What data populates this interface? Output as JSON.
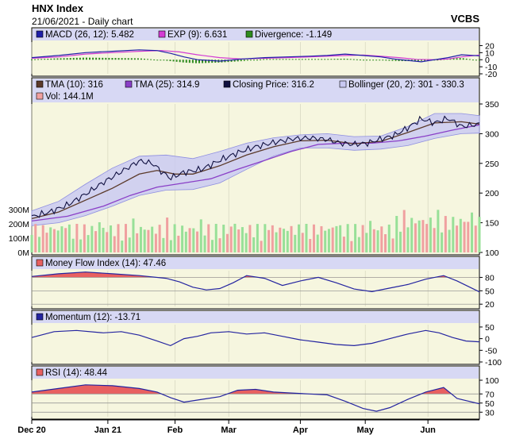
{
  "header": {
    "title": "HNX Index",
    "subtitle": "21/06/2021 - Daily chart",
    "brand": "VCBS"
  },
  "colors": {
    "panel_bg": "#f6f6df",
    "legend_bg": "#d7d8f4",
    "macd": "#1f1fa8",
    "exp": "#d33bd3",
    "divergence": "#2e8b1e",
    "tma10": "#5b3a2a",
    "tma25": "#8a3fc7",
    "closing": "#101040",
    "bollinger_fill": "#c8c8f2",
    "bollinger_line": "#8e8ee0",
    "vol_up": "#98e098",
    "vol_down": "#f0a0a0",
    "mfi_fill": "#e86060",
    "rsi_fill": "#e86060",
    "indicator_line": "#2424a0"
  },
  "chart_data": [
    {
      "type": "bar",
      "panel": "macd",
      "legend": [
        "MACD (26, 12): 5.482",
        "EXP (9): 6.631",
        "Divergence: -1.149"
      ],
      "ylim": [
        -20,
        25
      ],
      "yticks": [
        -20,
        -10,
        0,
        10,
        20
      ],
      "series": [
        {
          "name": "MACD (26, 12)",
          "points": [
            [
              0,
              3
            ],
            [
              0.06,
              6
            ],
            [
              0.12,
              10
            ],
            [
              0.18,
              12
            ],
            [
              0.24,
              14
            ],
            [
              0.28,
              13
            ],
            [
              0.31,
              9
            ],
            [
              0.34,
              4
            ],
            [
              0.37,
              0
            ],
            [
              0.42,
              -2
            ],
            [
              0.47,
              1
            ],
            [
              0.52,
              3
            ],
            [
              0.57,
              4
            ],
            [
              0.62,
              5
            ],
            [
              0.66,
              6
            ],
            [
              0.7,
              8
            ],
            [
              0.74,
              6
            ],
            [
              0.78,
              4
            ],
            [
              0.81,
              1
            ],
            [
              0.84,
              -1
            ],
            [
              0.87,
              -3
            ],
            [
              0.9,
              0
            ],
            [
              0.93,
              3
            ],
            [
              0.96,
              7
            ],
            [
              1.0,
              5.5
            ]
          ]
        },
        {
          "name": "EXP (9)",
          "points": [
            [
              0,
              2
            ],
            [
              0.06,
              4
            ],
            [
              0.12,
              8
            ],
            [
              0.18,
              10
            ],
            [
              0.24,
              12
            ],
            [
              0.29,
              13
            ],
            [
              0.33,
              11
            ],
            [
              0.37,
              7
            ],
            [
              0.42,
              3
            ],
            [
              0.47,
              1
            ],
            [
              0.52,
              2
            ],
            [
              0.57,
              3
            ],
            [
              0.62,
              4
            ],
            [
              0.66,
              5
            ],
            [
              0.7,
              6
            ],
            [
              0.74,
              6.5
            ],
            [
              0.78,
              5
            ],
            [
              0.82,
              3
            ],
            [
              0.86,
              0.5
            ],
            [
              0.9,
              0
            ],
            [
              0.93,
              1
            ],
            [
              0.96,
              4
            ],
            [
              1.0,
              6.6
            ]
          ]
        }
      ],
      "divergence_profile": [
        [
          0,
          0.5
        ],
        [
          0.06,
          2
        ],
        [
          0.12,
          3
        ],
        [
          0.18,
          2.5
        ],
        [
          0.24,
          2
        ],
        [
          0.28,
          0
        ],
        [
          0.31,
          -2
        ],
        [
          0.34,
          -4
        ],
        [
          0.37,
          -5
        ],
        [
          0.42,
          -4
        ],
        [
          0.47,
          -2
        ],
        [
          0.52,
          1
        ],
        [
          0.57,
          1
        ],
        [
          0.62,
          1
        ],
        [
          0.66,
          1
        ],
        [
          0.7,
          1.5
        ],
        [
          0.74,
          0
        ],
        [
          0.78,
          -1
        ],
        [
          0.82,
          -2
        ],
        [
          0.86,
          -2
        ],
        [
          0.9,
          -0.5
        ],
        [
          0.93,
          1.5
        ],
        [
          0.96,
          2.5
        ],
        [
          1.0,
          -1.1
        ]
      ]
    },
    {
      "type": "line",
      "panel": "price",
      "legend": [
        "TMA (10): 316",
        "TMA (25): 314.9",
        "Closing Price: 316.2",
        "Bollinger (20, 2): 301 - 330.3",
        "Vol: 144.1M"
      ],
      "ylim": [
        100,
        350
      ],
      "yticks": [
        100,
        150,
        200,
        250,
        300,
        350
      ],
      "volume_ticks": [
        "0M",
        "100M",
        "200M",
        "300M"
      ],
      "x_categories": [
        "Dec 20",
        "Jan 21",
        "Feb",
        "Mar",
        "Apr",
        "May",
        "Jun"
      ],
      "series": [
        {
          "name": "Closing Price",
          "points": [
            [
              0,
              160
            ],
            [
              0.04,
              168
            ],
            [
              0.08,
              180
            ],
            [
              0.12,
              198
            ],
            [
              0.16,
              218
            ],
            [
              0.2,
              236
            ],
            [
              0.24,
              254
            ],
            [
              0.27,
              250
            ],
            [
              0.29,
              236
            ],
            [
              0.31,
              225
            ],
            [
              0.34,
              235
            ],
            [
              0.38,
              240
            ],
            [
              0.42,
              255
            ],
            [
              0.46,
              268
            ],
            [
              0.5,
              278
            ],
            [
              0.54,
              285
            ],
            [
              0.58,
              291
            ],
            [
              0.62,
              293
            ],
            [
              0.66,
              290
            ],
            [
              0.69,
              284
            ],
            [
              0.72,
              282
            ],
            [
              0.75,
              284
            ],
            [
              0.78,
              291
            ],
            [
              0.81,
              297
            ],
            [
              0.84,
              310
            ],
            [
              0.87,
              325
            ],
            [
              0.9,
              318
            ],
            [
              0.93,
              326
            ],
            [
              0.96,
              312
            ],
            [
              1.0,
              316
            ]
          ]
        },
        {
          "name": "TMA (10)",
          "points": [
            [
              0,
              157
            ],
            [
              0.06,
              168
            ],
            [
              0.12,
              188
            ],
            [
              0.18,
              208
            ],
            [
              0.24,
              232
            ],
            [
              0.28,
              238
            ],
            [
              0.32,
              232
            ],
            [
              0.36,
              232
            ],
            [
              0.42,
              246
            ],
            [
              0.48,
              264
            ],
            [
              0.54,
              278
            ],
            [
              0.6,
              288
            ],
            [
              0.66,
              289
            ],
            [
              0.72,
              283
            ],
            [
              0.78,
              287
            ],
            [
              0.84,
              302
            ],
            [
              0.9,
              318
            ],
            [
              0.96,
              320
            ],
            [
              1.0,
              316
            ]
          ]
        },
        {
          "name": "TMA (25)",
          "points": [
            [
              0,
              153
            ],
            [
              0.08,
              161
            ],
            [
              0.16,
              178
            ],
            [
              0.22,
              196
            ],
            [
              0.28,
              210
            ],
            [
              0.34,
              217
            ],
            [
              0.4,
              224
            ],
            [
              0.46,
              240
            ],
            [
              0.52,
              255
            ],
            [
              0.58,
              270
            ],
            [
              0.64,
              282
            ],
            [
              0.7,
              284
            ],
            [
              0.76,
              284
            ],
            [
              0.82,
              288
            ],
            [
              0.88,
              296
            ],
            [
              0.94,
              306
            ],
            [
              1.0,
              314.9
            ]
          ]
        },
        {
          "name": "Bollinger Upper",
          "points": [
            [
              0,
              170
            ],
            [
              0.06,
              186
            ],
            [
              0.12,
              215
            ],
            [
              0.18,
              242
            ],
            [
              0.24,
              262
            ],
            [
              0.3,
              264
            ],
            [
              0.36,
              258
            ],
            [
              0.42,
              270
            ],
            [
              0.48,
              284
            ],
            [
              0.54,
              293
            ],
            [
              0.6,
              298
            ],
            [
              0.66,
              300
            ],
            [
              0.72,
              295
            ],
            [
              0.78,
              296
            ],
            [
              0.84,
              312
            ],
            [
              0.9,
              334
            ],
            [
              0.96,
              334
            ],
            [
              1.0,
              330.3
            ]
          ]
        },
        {
          "name": "Bollinger Lower",
          "points": [
            [
              0,
              145
            ],
            [
              0.06,
              150
            ],
            [
              0.12,
              162
            ],
            [
              0.18,
              178
            ],
            [
              0.24,
              196
            ],
            [
              0.3,
              205
            ],
            [
              0.36,
              206
            ],
            [
              0.42,
              217
            ],
            [
              0.48,
              240
            ],
            [
              0.54,
              262
            ],
            [
              0.6,
              276
            ],
            [
              0.66,
              276
            ],
            [
              0.72,
              272
            ],
            [
              0.78,
              274
            ],
            [
              0.84,
              280
            ],
            [
              0.9,
              292
            ],
            [
              0.96,
              300
            ],
            [
              1.0,
              301
            ]
          ]
        }
      ]
    },
    {
      "type": "area",
      "panel": "mfi",
      "legend": [
        "Money Flow Index (14): 47.46"
      ],
      "ylim": [
        15,
        95
      ],
      "yticks": [
        20,
        50,
        80
      ],
      "threshold": 80,
      "series": [
        {
          "name": "Money Flow Index (14)",
          "points": [
            [
              0,
              82
            ],
            [
              0.06,
              88
            ],
            [
              0.12,
              92
            ],
            [
              0.18,
              88
            ],
            [
              0.24,
              84
            ],
            [
              0.3,
              78
            ],
            [
              0.33,
              70
            ],
            [
              0.36,
              58
            ],
            [
              0.39,
              52
            ],
            [
              0.42,
              55
            ],
            [
              0.45,
              68
            ],
            [
              0.48,
              84
            ],
            [
              0.52,
              78
            ],
            [
              0.56,
              62
            ],
            [
              0.6,
              72
            ],
            [
              0.64,
              80
            ],
            [
              0.68,
              68
            ],
            [
              0.72,
              54
            ],
            [
              0.76,
              48
            ],
            [
              0.8,
              56
            ],
            [
              0.84,
              64
            ],
            [
              0.88,
              76
            ],
            [
              0.92,
              84
            ],
            [
              0.95,
              72
            ],
            [
              1.0,
              47.5
            ]
          ]
        }
      ]
    },
    {
      "type": "line",
      "panel": "momentum",
      "legend": [
        "Momentum (12): -13.71"
      ],
      "ylim": [
        -100,
        60
      ],
      "yticks": [
        -100,
        -50,
        0,
        50
      ],
      "series": [
        {
          "name": "Momentum (12)",
          "points": [
            [
              0,
              5
            ],
            [
              0.05,
              30
            ],
            [
              0.1,
              35
            ],
            [
              0.16,
              25
            ],
            [
              0.2,
              30
            ],
            [
              0.24,
              15
            ],
            [
              0.28,
              -10
            ],
            [
              0.31,
              -30
            ],
            [
              0.34,
              0
            ],
            [
              0.37,
              10
            ],
            [
              0.4,
              25
            ],
            [
              0.44,
              30
            ],
            [
              0.48,
              20
            ],
            [
              0.52,
              25
            ],
            [
              0.56,
              10
            ],
            [
              0.6,
              -5
            ],
            [
              0.64,
              -15
            ],
            [
              0.68,
              -25
            ],
            [
              0.72,
              -30
            ],
            [
              0.76,
              -20
            ],
            [
              0.8,
              0
            ],
            [
              0.84,
              20
            ],
            [
              0.88,
              35
            ],
            [
              0.91,
              25
            ],
            [
              0.94,
              5
            ],
            [
              0.97,
              -10
            ],
            [
              1.0,
              -13.7
            ]
          ]
        }
      ]
    },
    {
      "type": "area",
      "panel": "rsi",
      "legend": [
        "RSI (14): 48.44"
      ],
      "ylim": [
        20,
        100
      ],
      "yticks": [
        30,
        50,
        70,
        100
      ],
      "threshold": 70,
      "series": [
        {
          "name": "RSI (14)",
          "points": [
            [
              0,
              74
            ],
            [
              0.06,
              82
            ],
            [
              0.12,
              90
            ],
            [
              0.18,
              88
            ],
            [
              0.24,
              82
            ],
            [
              0.28,
              74
            ],
            [
              0.31,
              62
            ],
            [
              0.34,
              52
            ],
            [
              0.38,
              58
            ],
            [
              0.42,
              64
            ],
            [
              0.46,
              78
            ],
            [
              0.5,
              80
            ],
            [
              0.54,
              74
            ],
            [
              0.58,
              72
            ],
            [
              0.62,
              70
            ],
            [
              0.66,
              68
            ],
            [
              0.7,
              54
            ],
            [
              0.74,
              38
            ],
            [
              0.77,
              32
            ],
            [
              0.8,
              40
            ],
            [
              0.84,
              58
            ],
            [
              0.88,
              74
            ],
            [
              0.92,
              84
            ],
            [
              0.95,
              60
            ],
            [
              1.0,
              48.4
            ]
          ]
        }
      ]
    }
  ]
}
